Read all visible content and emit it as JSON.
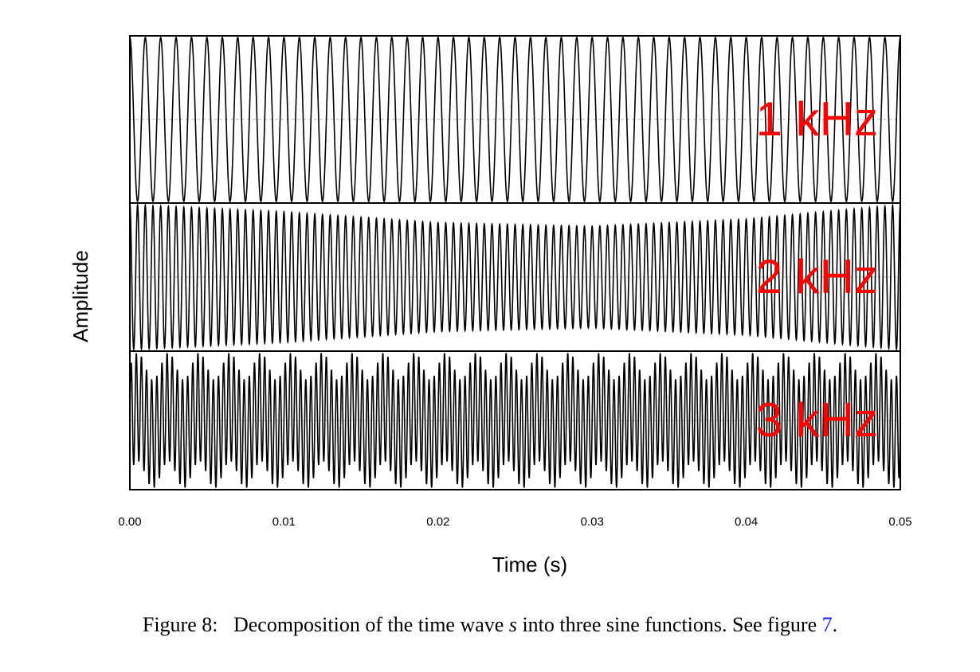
{
  "chart_data": {
    "type": "line",
    "title": "",
    "xlabel": "Time (s)",
    "ylabel": "Amplitude",
    "xlim": [
      0,
      0.05
    ],
    "x_ticks": [
      "0.00",
      "0.01",
      "0.02",
      "0.03",
      "0.04",
      "0.05"
    ],
    "grid": false,
    "legend": "none",
    "colors": {
      "trace": "#000000",
      "panel_label": "#ff0000",
      "zero_line": "#bbbbbb"
    },
    "series": [
      {
        "name": "1 kHz",
        "frequency_hz": 1000,
        "amplitude_envelope": [
          1.0,
          1.0,
          1.0,
          1.0,
          1.0,
          1.0
        ]
      },
      {
        "name": "2 kHz",
        "frequency_hz": 2000,
        "amplitude_envelope": [
          1.0,
          0.9,
          0.75,
          0.7,
          0.8,
          1.0
        ]
      },
      {
        "name": "3 kHz",
        "frequency_hz": 3000,
        "amplitude_envelope": [
          1.0,
          1.0,
          1.0,
          1.0,
          1.0,
          1.0
        ]
      }
    ]
  },
  "caption": {
    "prefix": "Figure 8:",
    "text_before_var": "Decomposition of the time wave",
    "variable": "s",
    "text_after_var": "into three sine functions. See figure",
    "ref": "7",
    "suffix": "."
  }
}
